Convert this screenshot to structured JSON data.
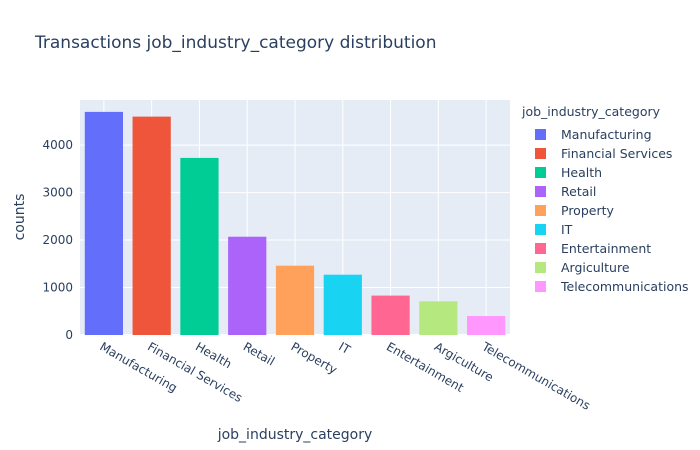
{
  "chart_data": {
    "type": "bar",
    "title": "Transactions job_industry_category distribution",
    "xlabel": "job_industry_category",
    "ylabel": "counts",
    "categories": [
      "Manufacturing",
      "Financial Services",
      "Health",
      "Retail",
      "Property",
      "IT",
      "Entertainment",
      "Argiculture",
      "Telecommunications"
    ],
    "values": [
      4700,
      4600,
      3730,
      2070,
      1460,
      1270,
      830,
      710,
      400
    ],
    "colors": [
      "#636efa",
      "#ef553b",
      "#00cc96",
      "#ab63fa",
      "#ffa15a",
      "#19d3f3",
      "#ff6692",
      "#b6e880",
      "#ff97ff"
    ],
    "yticks": [
      0,
      1000,
      2000,
      3000,
      4000
    ],
    "yticklabels": [
      "0",
      "1000",
      "2000",
      "3000",
      "4000"
    ],
    "ylim": [
      0,
      4950
    ],
    "grid": true,
    "legend": {
      "title": "job_industry_category",
      "placement": "right",
      "items": [
        "Manufacturing",
        "Financial Services",
        "Health",
        "Retail",
        "Property",
        "IT",
        "Entertainment",
        "Argiculture",
        "Telecommunications"
      ]
    },
    "background": "#e5ecf6"
  }
}
